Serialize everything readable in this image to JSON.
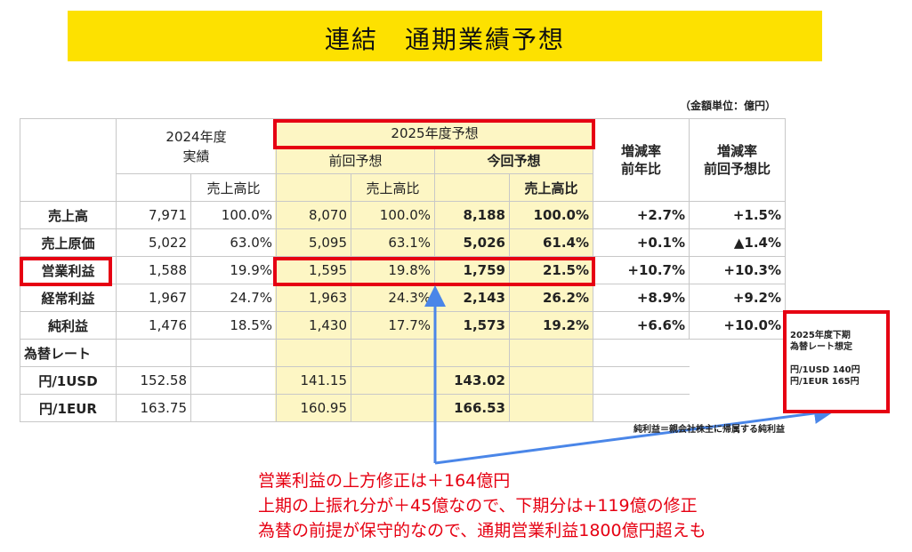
{
  "title": "連結　通期業績予想",
  "unit_note": "（金額単位：億円）",
  "header": {
    "fy2024": "2024年度\n実績",
    "fy2025": "2025年度予想",
    "previous": "前回予想",
    "current": "今回予想",
    "ratio": "売上高比",
    "yoy": "増減率\n前年比",
    "vs_prev": "増減率\n前回予想比"
  },
  "rows": [
    {
      "label": "売上高",
      "a2024": "7,971",
      "r2024": "100.0%",
      "prev": "8,070",
      "rprev": "100.0%",
      "cur": "8,188",
      "rcur": "100.0%",
      "yoy": "+2.7%",
      "vsprev": "+1.5%"
    },
    {
      "label": "売上原価",
      "a2024": "5,022",
      "r2024": "63.0%",
      "prev": "5,095",
      "rprev": "63.1%",
      "cur": "5,026",
      "rcur": "61.4%",
      "yoy": "+0.1%",
      "vsprev": "▲1.4%"
    },
    {
      "label": "営業利益",
      "a2024": "1,588",
      "r2024": "19.9%",
      "prev": "1,595",
      "rprev": "19.8%",
      "cur": "1,759",
      "rcur": "21.5%",
      "yoy": "+10.7%",
      "vsprev": "+10.3%"
    },
    {
      "label": "経常利益",
      "a2024": "1,967",
      "r2024": "24.7%",
      "prev": "1,963",
      "rprev": "24.3%",
      "cur": "2,143",
      "rcur": "26.2%",
      "yoy": "+8.9%",
      "vsprev": "+9.2%"
    },
    {
      "label": "純利益",
      "a2024": "1,476",
      "r2024": "18.5%",
      "prev": "1,430",
      "rprev": "17.7%",
      "cur": "1,573",
      "rcur": "19.2%",
      "yoy": "+6.6%",
      "vsprev": "+10.0%"
    }
  ],
  "fx": {
    "label": "為替レート",
    "usd": {
      "label": "円/1USD",
      "a2024": "152.58",
      "prev": "141.15",
      "cur": "143.02"
    },
    "eur": {
      "label": "円/1EUR",
      "a2024": "163.75",
      "prev": "160.95",
      "cur": "166.53"
    }
  },
  "rate_box": {
    "line1": "2025年度下期",
    "line2": "為替レート想定",
    "line3": "円/1USD 140円",
    "line4": "円/1EUR 165円"
  },
  "footnote": "純利益＝親会社株主に帰属する純利益",
  "commentary": [
    "営業利益の上方修正は＋164億円",
    "上期の上振れ分が＋45億なので、下期分は+119億の修正",
    "為替の前提が保守的なので、通期営業利益1800億円超えも"
  ],
  "colors": {
    "title_bg": "#fde100",
    "highlight_red": "#e60012",
    "forecast_bg": "#fdf6c4",
    "arrow_blue": "#4a86e8"
  }
}
